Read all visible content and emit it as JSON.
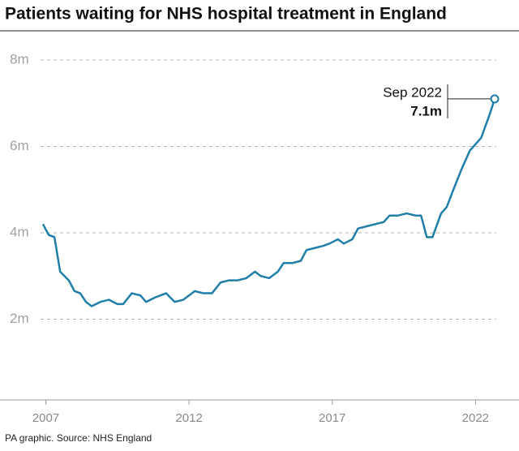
{
  "chart_data": {
    "type": "line",
    "title": "Patients waiting for NHS hospital treatment in England",
    "source": "PA graphic. Source: NHS England",
    "annotation": {
      "date": "Sep 2022",
      "value": "7.1m"
    },
    "x": [
      2006.9,
      2007.1,
      2007.3,
      2007.5,
      2007.8,
      2008.0,
      2008.2,
      2008.4,
      2008.6,
      2008.9,
      2009.2,
      2009.5,
      2009.7,
      2010.0,
      2010.3,
      2010.5,
      2010.8,
      2011.2,
      2011.5,
      2011.8,
      2012.2,
      2012.5,
      2012.8,
      2013.1,
      2013.4,
      2013.7,
      2014.0,
      2014.3,
      2014.5,
      2014.8,
      2015.1,
      2015.3,
      2015.6,
      2015.9,
      2016.1,
      2016.4,
      2016.7,
      2016.9,
      2017.2,
      2017.4,
      2017.7,
      2017.9,
      2018.2,
      2018.5,
      2018.8,
      2019.0,
      2019.3,
      2019.6,
      2019.9,
      2020.1,
      2020.3,
      2020.5,
      2020.8,
      2021.0,
      2021.2,
      2021.5,
      2021.8,
      2022.0,
      2022.2,
      2022.5,
      2022.67
    ],
    "series": [
      {
        "name": "Patients waiting",
        "color": "#1f7fa8",
        "values": [
          4.2,
          3.95,
          3.9,
          3.1,
          2.9,
          2.65,
          2.6,
          2.4,
          2.3,
          2.4,
          2.45,
          2.35,
          2.35,
          2.6,
          2.55,
          2.4,
          2.5,
          2.6,
          2.4,
          2.45,
          2.65,
          2.6,
          2.6,
          2.85,
          2.9,
          2.9,
          2.95,
          3.1,
          3.0,
          2.95,
          3.1,
          3.3,
          3.3,
          3.35,
          3.6,
          3.65,
          3.7,
          3.75,
          3.85,
          3.75,
          3.85,
          4.1,
          4.15,
          4.2,
          4.25,
          4.4,
          4.4,
          4.45,
          4.4,
          4.4,
          3.9,
          3.9,
          4.45,
          4.6,
          4.95,
          5.45,
          5.9,
          6.05,
          6.2,
          6.75,
          7.1
        ]
      }
    ],
    "xlim": [
      2006.9,
      2022.67
    ],
    "xticks": [
      2007,
      2012,
      2017,
      2022
    ],
    "ylim": [
      0,
      8
    ],
    "yticks": [
      {
        "value": 2,
        "label": "2m"
      },
      {
        "value": 4,
        "label": "4m"
      },
      {
        "value": 6,
        "label": "6m"
      },
      {
        "value": 8,
        "label": "8m"
      }
    ],
    "grid": true
  }
}
